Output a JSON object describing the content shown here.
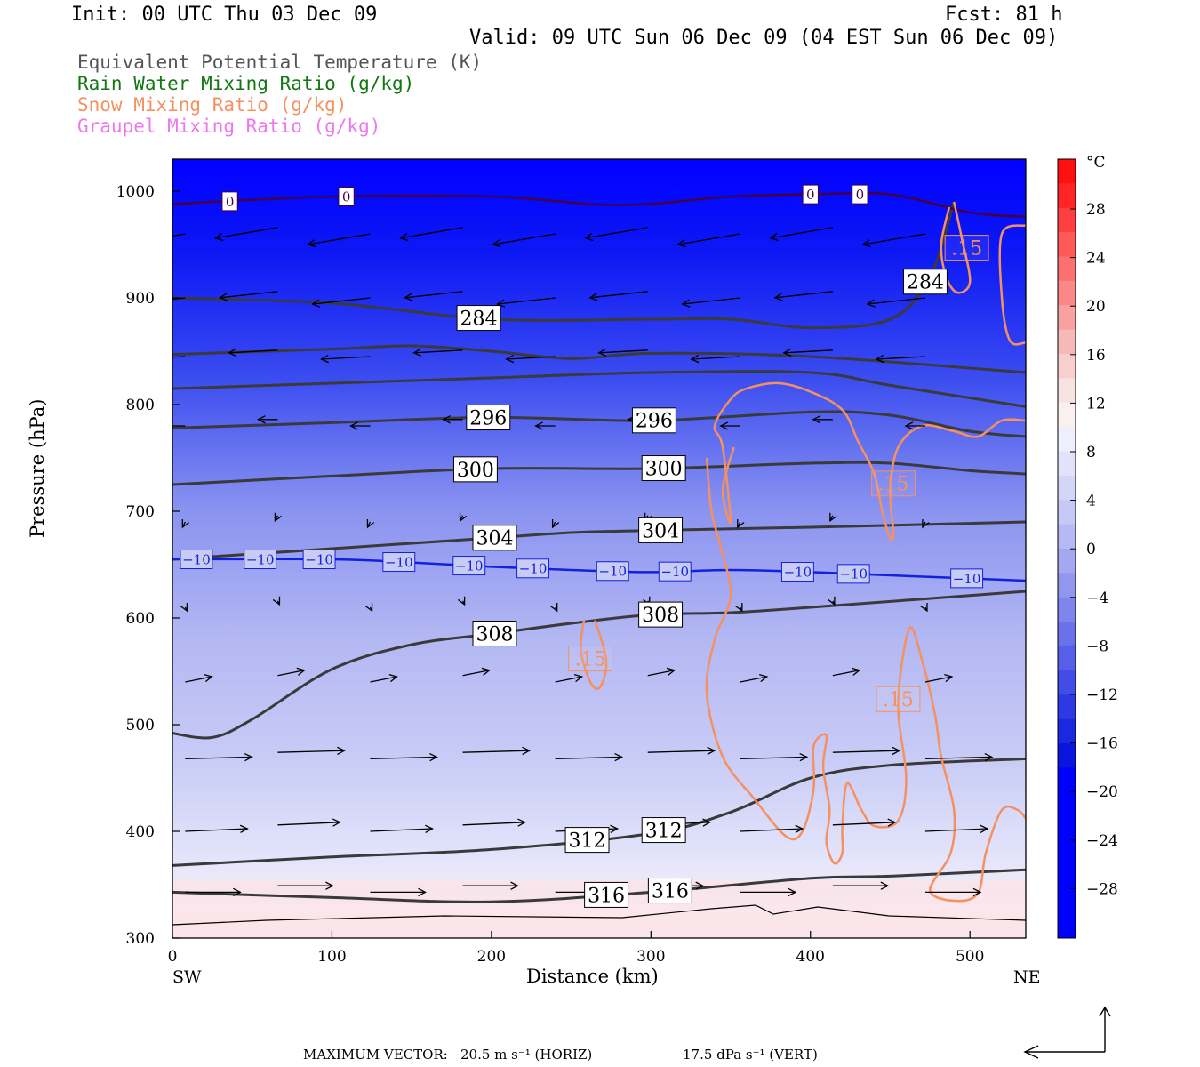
{
  "header": {
    "init": "Init: 00 UTC Thu 03 Dec 09",
    "fcst": "Fcst:   81 h",
    "valid": "Valid: 09 UTC Sun 06 Dec 09 (04 EST Sun 06 Dec 09)"
  },
  "legend": [
    {
      "label": "Equivalent Potential Temperature (K)",
      "color": "#555555"
    },
    {
      "label": "Rain Water Mixing Ratio (g/kg)",
      "color": "#117711"
    },
    {
      "label": "Snow Mixing Ratio (g/kg)",
      "color": "#f59060"
    },
    {
      "label": "Graupel Mixing Ratio (g/kg)",
      "color": "#ee77ee"
    }
  ],
  "colors": {
    "theta_e": "#3a3a3a",
    "isotherm_minus10": "#1122dd",
    "isotherm_0": "#440044",
    "snow": "#f59060",
    "vector": "#000000"
  },
  "chart_data": {
    "type": "heatmap",
    "xlabel": "Distance (km)",
    "ylabel": "Pressure (hPa)",
    "xlim": [
      0,
      535
    ],
    "ylim": [
      1030,
      300
    ],
    "x_ticks": [
      0,
      100,
      200,
      300,
      400,
      500
    ],
    "y_ticks": [
      300,
      400,
      500,
      600,
      700,
      800,
      900,
      1000
    ],
    "end_labels": {
      "left": "SW",
      "right": "NE"
    },
    "colorbar": {
      "unit": "°C",
      "ticks": [
        "28",
        "24",
        "20",
        "16",
        "12",
        "8",
        "4",
        "0",
        "-4",
        "-8",
        "-12",
        "-16",
        "-20",
        "-24",
        "-28"
      ]
    },
    "theta_e_contours": [
      {
        "value": 316,
        "points": [
          [
            0,
            343
          ],
          [
            100,
            338
          ],
          [
            200,
            334
          ],
          [
            300,
            343
          ],
          [
            400,
            356
          ],
          [
            450,
            358
          ],
          [
            535,
            364
          ]
        ],
        "labels": [
          {
            "x": 272,
            "text": "316"
          },
          {
            "x": 312,
            "text": "316"
          }
        ]
      },
      {
        "value": 312,
        "points": [
          [
            0,
            368
          ],
          [
            100,
            376
          ],
          [
            200,
            383
          ],
          [
            300,
            398
          ],
          [
            350,
            418
          ],
          [
            400,
            450
          ],
          [
            450,
            462
          ],
          [
            535,
            468
          ]
        ],
        "labels": [
          {
            "x": 260,
            "text": "312"
          },
          {
            "x": 308,
            "text": "312"
          }
        ]
      },
      {
        "value": 308,
        "points": [
          [
            0,
            492
          ],
          [
            25,
            488
          ],
          [
            50,
            505
          ],
          [
            100,
            552
          ],
          [
            150,
            575
          ],
          [
            200,
            585
          ],
          [
            250,
            595
          ],
          [
            300,
            603
          ],
          [
            350,
            605
          ],
          [
            400,
            610
          ],
          [
            535,
            625
          ]
        ],
        "labels": [
          {
            "x": 202,
            "text": "308"
          },
          {
            "x": 306,
            "text": "308"
          }
        ]
      },
      {
        "value": 304,
        "points": [
          [
            0,
            655
          ],
          [
            100,
            665
          ],
          [
            200,
            675
          ],
          [
            250,
            680
          ],
          [
            300,
            682
          ],
          [
            400,
            685
          ],
          [
            535,
            690
          ]
        ],
        "labels": [
          {
            "x": 202,
            "text": "304"
          },
          {
            "x": 306,
            "text": "304"
          }
        ]
      },
      {
        "value": 300,
        "points": [
          [
            0,
            725
          ],
          [
            100,
            733
          ],
          [
            200,
            740
          ],
          [
            300,
            740
          ],
          [
            400,
            745
          ],
          [
            450,
            745
          ],
          [
            500,
            738
          ],
          [
            535,
            735
          ]
        ],
        "labels": [
          {
            "x": 190,
            "text": "300"
          },
          {
            "x": 308,
            "text": "300"
          }
        ]
      },
      {
        "value": 296,
        "points": [
          [
            0,
            778
          ],
          [
            100,
            783
          ],
          [
            200,
            788
          ],
          [
            300,
            785
          ],
          [
            400,
            793
          ],
          [
            450,
            790
          ],
          [
            500,
            775
          ],
          [
            535,
            770
          ]
        ],
        "labels": [
          {
            "x": 198,
            "text": "296"
          },
          {
            "x": 302,
            "text": "296"
          }
        ]
      },
      {
        "value": 292,
        "points": [
          [
            0,
            815
          ],
          [
            100,
            820
          ],
          [
            200,
            825
          ],
          [
            300,
            830
          ],
          [
            400,
            830
          ],
          [
            450,
            818
          ],
          [
            535,
            798
          ]
        ],
        "labels": []
      },
      {
        "value": 288,
        "points": [
          [
            0,
            847
          ],
          [
            100,
            852
          ],
          [
            150,
            855
          ],
          [
            200,
            850
          ],
          [
            250,
            843
          ],
          [
            300,
            848
          ],
          [
            400,
            845
          ],
          [
            535,
            830
          ]
        ],
        "labels": []
      },
      {
        "value": 284,
        "points": [
          [
            0,
            900
          ],
          [
            100,
            895
          ],
          [
            200,
            880
          ],
          [
            300,
            880
          ],
          [
            350,
            880
          ],
          [
            400,
            872
          ],
          [
            450,
            880
          ],
          [
            475,
            920
          ],
          [
            490,
            990
          ]
        ],
        "labels": [
          {
            "x": 192,
            "text": "284"
          },
          {
            "x": 472,
            "text": "284"
          }
        ]
      }
    ],
    "isotherms": [
      {
        "value": -10,
        "points": [
          [
            0,
            655
          ],
          [
            100,
            655
          ],
          [
            150,
            652
          ],
          [
            200,
            648
          ],
          [
            250,
            645
          ],
          [
            300,
            643
          ],
          [
            350,
            645
          ],
          [
            400,
            643
          ],
          [
            450,
            640
          ],
          [
            535,
            635
          ]
        ],
        "labels": [
          {
            "x": 15,
            "text": "−10"
          },
          {
            "x": 55,
            "text": "−10"
          },
          {
            "x": 92,
            "text": "−10"
          },
          {
            "x": 142,
            "text": "−10"
          },
          {
            "x": 186,
            "text": "−10"
          },
          {
            "x": 226,
            "text": "−10"
          },
          {
            "x": 276,
            "text": "−10"
          },
          {
            "x": 315,
            "text": "−10"
          },
          {
            "x": 392,
            "text": "−10"
          },
          {
            "x": 427,
            "text": "−10"
          },
          {
            "x": 498,
            "text": "−10"
          }
        ]
      },
      {
        "value": 0,
        "points": [
          [
            0,
            988
          ],
          [
            100,
            995
          ],
          [
            200,
            995
          ],
          [
            280,
            987
          ],
          [
            350,
            995
          ],
          [
            400,
            997
          ],
          [
            450,
            997
          ],
          [
            500,
            980
          ],
          [
            535,
            976
          ]
        ],
        "labels": [
          {
            "x": 36,
            "text": "0"
          },
          {
            "x": 109,
            "text": "0"
          },
          {
            "x": 400,
            "text": "0"
          },
          {
            "x": 431,
            "text": "0"
          }
        ]
      }
    ],
    "snow_contours": [
      {
        "value": 0.15,
        "label": ".15",
        "label_at": [
          262,
          562
        ]
      },
      {
        "value": 0.15,
        "label": ".15",
        "label_at": [
          455,
          524
        ]
      },
      {
        "value": 0.15,
        "label": ".15",
        "label_at": [
          452,
          726
        ]
      },
      {
        "value": 0.15,
        "label": ".15",
        "label_at": [
          498,
          947
        ]
      }
    ],
    "max_vector": {
      "horiz": "20.5 m s⁻¹ (HORIZ)",
      "vert": "17.5 dPa s⁻¹ (VERT)"
    }
  },
  "footer": {
    "label": "MAXIMUM VECTOR:",
    "horiz": "20.5 m s⁻¹ (HORIZ)",
    "vert": "17.5 dPa s⁻¹ (VERT)"
  }
}
